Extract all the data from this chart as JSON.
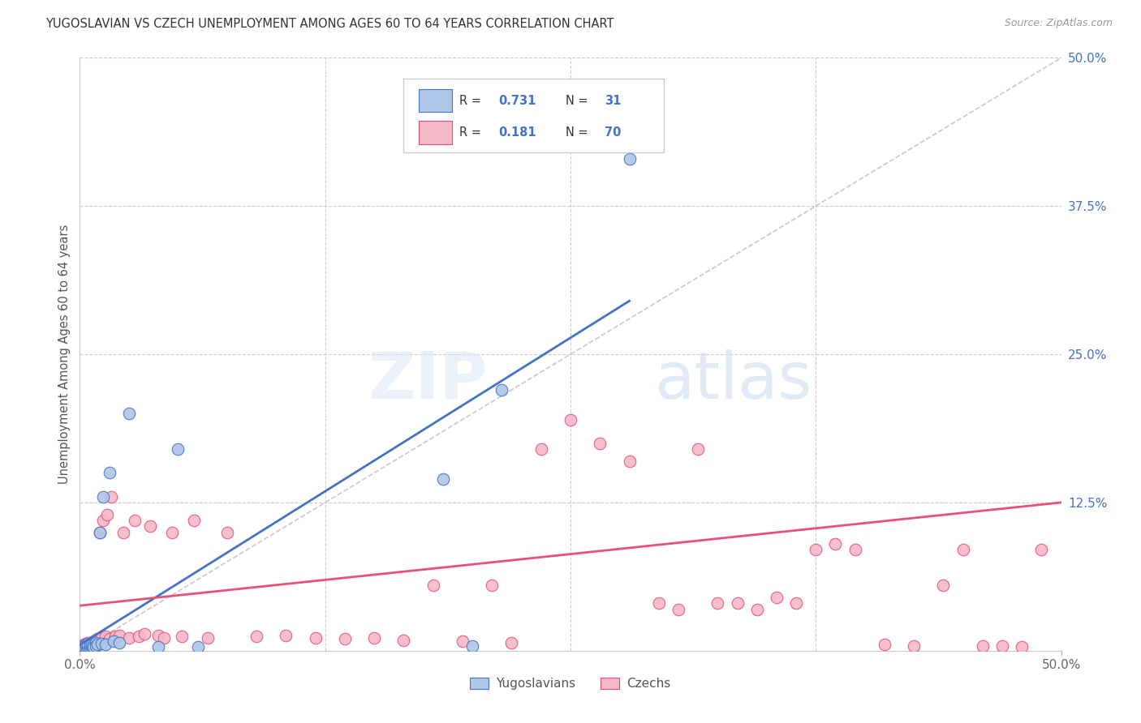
{
  "title": "YUGOSLAVIAN VS CZECH UNEMPLOYMENT AMONG AGES 60 TO 64 YEARS CORRELATION CHART",
  "source": "Source: ZipAtlas.com",
  "ylabel": "Unemployment Among Ages 60 to 64 years",
  "xlim": [
    0,
    0.5
  ],
  "ylim": [
    0,
    0.5
  ],
  "legend_R1": "0.731",
  "legend_N1": "31",
  "legend_R2": "0.181",
  "legend_N2": "70",
  "legend_label1": "Yugoslavians",
  "legend_label2": "Czechs",
  "color_blue_fill": "#aec6e8",
  "color_pink_fill": "#f4b8c8",
  "color_blue_edge": "#4472C4",
  "color_pink_edge": "#E8527A",
  "color_blue_text": "#4472C4",
  "color_gray_diag": "#bbbbbb",
  "background_color": "#ffffff",
  "grid_color": "#cccccc",
  "watermark_zip": "ZIP",
  "watermark_atlas": "atlas",
  "blue_line_x": [
    0.0,
    0.28
  ],
  "blue_line_y": [
    0.005,
    0.295
  ],
  "pink_line_x": [
    0.0,
    0.5
  ],
  "pink_line_y": [
    0.038,
    0.125
  ],
  "yug_x": [
    0.001,
    0.002,
    0.002,
    0.003,
    0.003,
    0.004,
    0.004,
    0.005,
    0.005,
    0.006,
    0.006,
    0.007,
    0.007,
    0.008,
    0.008,
    0.009,
    0.01,
    0.011,
    0.012,
    0.013,
    0.015,
    0.017,
    0.02,
    0.025,
    0.04,
    0.05,
    0.06,
    0.185,
    0.2,
    0.215,
    0.28
  ],
  "yug_y": [
    0.002,
    0.003,
    0.004,
    0.003,
    0.005,
    0.004,
    0.006,
    0.003,
    0.005,
    0.004,
    0.006,
    0.005,
    0.003,
    0.007,
    0.004,
    0.005,
    0.1,
    0.006,
    0.13,
    0.005,
    0.15,
    0.008,
    0.007,
    0.2,
    0.003,
    0.17,
    0.003,
    0.145,
    0.004,
    0.22,
    0.415
  ],
  "czech_x": [
    0.001,
    0.002,
    0.002,
    0.003,
    0.003,
    0.004,
    0.004,
    0.005,
    0.005,
    0.006,
    0.006,
    0.007,
    0.007,
    0.008,
    0.009,
    0.01,
    0.011,
    0.012,
    0.013,
    0.014,
    0.015,
    0.016,
    0.018,
    0.02,
    0.022,
    0.025,
    0.028,
    0.03,
    0.033,
    0.036,
    0.04,
    0.043,
    0.047,
    0.052,
    0.058,
    0.065,
    0.075,
    0.09,
    0.105,
    0.12,
    0.135,
    0.15,
    0.165,
    0.18,
    0.195,
    0.21,
    0.22,
    0.235,
    0.25,
    0.265,
    0.28,
    0.295,
    0.305,
    0.315,
    0.325,
    0.335,
    0.345,
    0.355,
    0.365,
    0.375,
    0.385,
    0.395,
    0.41,
    0.425,
    0.44,
    0.45,
    0.46,
    0.47,
    0.48,
    0.49
  ],
  "czech_y": [
    0.003,
    0.004,
    0.005,
    0.006,
    0.004,
    0.005,
    0.007,
    0.006,
    0.004,
    0.007,
    0.006,
    0.005,
    0.008,
    0.007,
    0.01,
    0.1,
    0.011,
    0.11,
    0.012,
    0.115,
    0.01,
    0.13,
    0.012,
    0.013,
    0.1,
    0.011,
    0.11,
    0.012,
    0.014,
    0.105,
    0.013,
    0.011,
    0.1,
    0.012,
    0.11,
    0.011,
    0.1,
    0.012,
    0.013,
    0.011,
    0.01,
    0.011,
    0.009,
    0.055,
    0.008,
    0.055,
    0.007,
    0.17,
    0.195,
    0.175,
    0.16,
    0.04,
    0.035,
    0.17,
    0.04,
    0.04,
    0.035,
    0.045,
    0.04,
    0.085,
    0.09,
    0.085,
    0.005,
    0.004,
    0.055,
    0.085,
    0.004,
    0.004,
    0.003,
    0.085
  ]
}
